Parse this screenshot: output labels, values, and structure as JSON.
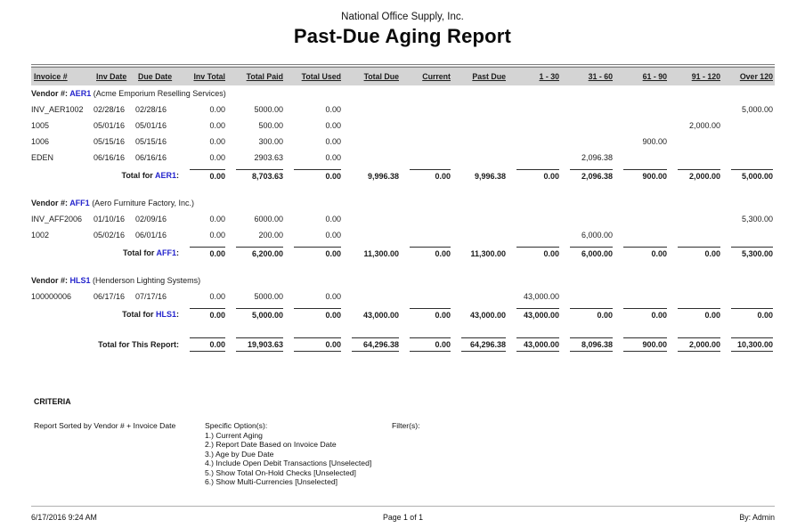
{
  "header": {
    "company": "National Office Supply, Inc.",
    "title": "Past-Due Aging Report"
  },
  "table": {
    "columns": [
      "Invoice #",
      "Inv Date",
      "Due Date",
      "Inv Total",
      "Total Paid",
      "Total Used",
      "Total Due",
      "Current",
      "Past Due",
      "1 - 30",
      "31 - 60",
      "61 - 90",
      "91 - 120",
      "Over 120"
    ],
    "vendor_label": "Vendor #:",
    "total_label_prefix": "Total for",
    "sections": [
      {
        "code": "AER1",
        "name": "(Acme Emporium Reselling Services)",
        "rows": [
          [
            "INV_AER1002",
            "02/28/16",
            "02/28/16",
            "0.00",
            "5000.00",
            "0.00",
            "",
            "",
            "",
            "",
            "",
            "",
            "",
            "5,000.00"
          ],
          [
            "1005",
            "05/01/16",
            "05/01/16",
            "0.00",
            "500.00",
            "0.00",
            "",
            "",
            "",
            "",
            "",
            "",
            "2,000.00",
            ""
          ],
          [
            "1006",
            "05/15/16",
            "05/15/16",
            "0.00",
            "300.00",
            "0.00",
            "",
            "",
            "",
            "",
            "",
            "900.00",
            "",
            ""
          ],
          [
            "EDEN",
            "06/16/16",
            "06/16/16",
            "0.00",
            "2903.63",
            "0.00",
            "",
            "",
            "",
            "",
            "2,096.38",
            "",
            "",
            ""
          ]
        ],
        "total": [
          "0.00",
          "8,703.63",
          "0.00",
          "9,996.38",
          "0.00",
          "9,996.38",
          "0.00",
          "2,096.38",
          "900.00",
          "2,000.00",
          "5,000.00"
        ]
      },
      {
        "code": "AFF1",
        "name": "(Aero Furniture Factory, Inc.)",
        "rows": [
          [
            "INV_AFF2006",
            "01/10/16",
            "02/09/16",
            "0.00",
            "6000.00",
            "0.00",
            "",
            "",
            "",
            "",
            "",
            "",
            "",
            "5,300.00"
          ],
          [
            "1002",
            "05/02/16",
            "06/01/16",
            "0.00",
            "200.00",
            "0.00",
            "",
            "",
            "",
            "",
            "6,000.00",
            "",
            "",
            ""
          ]
        ],
        "total": [
          "0.00",
          "6,200.00",
          "0.00",
          "11,300.00",
          "0.00",
          "11,300.00",
          "0.00",
          "6,000.00",
          "0.00",
          "0.00",
          "5,300.00"
        ]
      },
      {
        "code": "HLS1",
        "name": "(Henderson Lighting Systems)",
        "rows": [
          [
            "100000006",
            "06/17/16",
            "07/17/16",
            "0.00",
            "5000.00",
            "0.00",
            "",
            "",
            "",
            "43,000.00",
            "",
            "",
            "",
            ""
          ]
        ],
        "total": [
          "0.00",
          "5,000.00",
          "0.00",
          "43,000.00",
          "0.00",
          "43,000.00",
          "43,000.00",
          "0.00",
          "0.00",
          "0.00",
          "0.00"
        ]
      }
    ],
    "report_total_label": "Total for This Report:",
    "report_total": [
      "0.00",
      "19,903.63",
      "0.00",
      "64,296.38",
      "0.00",
      "64,296.38",
      "43,000.00",
      "8,096.38",
      "900.00",
      "2,000.00",
      "10,300.00"
    ]
  },
  "criteria": {
    "heading": "CRITERIA",
    "sorted_by": "Report Sorted by Vendor # + Invoice Date",
    "options_label": "Specific Option(s):",
    "options": [
      "1.) Current Aging",
      "2.) Report Date Based on Invoice Date",
      "3.) Age by Due Date",
      "4.) Include Open Debit Transactions [Unselected]",
      "5.) Show Total On-Hold Checks [Unselected]",
      "6.) Show Multi-Currencies [Unselected]"
    ],
    "filters_label": "Filter(s):"
  },
  "footer": {
    "datetime": "6/17/2016 9:24 AM",
    "page": "Page 1 of 1",
    "by": "By: Admin"
  },
  "colors": {
    "accent_blue": "#2525cd",
    "header_band": "#d4d4d4"
  }
}
